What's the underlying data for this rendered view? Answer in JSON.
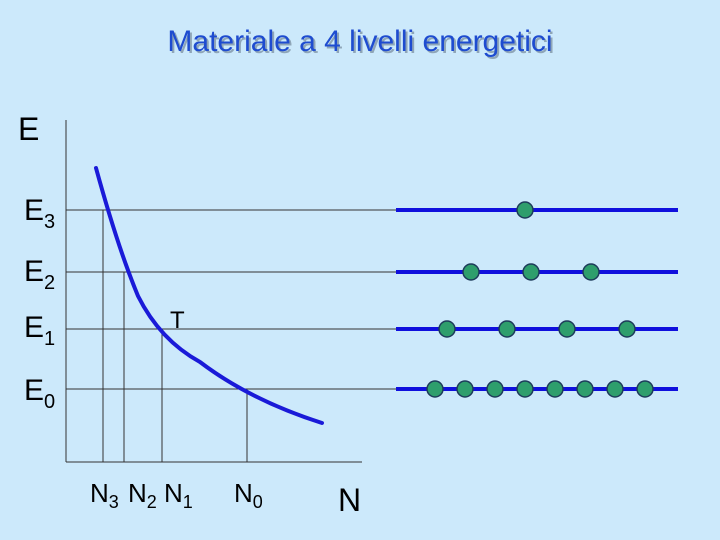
{
  "title": "Materiale a 4 livelli energetici",
  "axis": {
    "y_label": "E",
    "x_label": "N",
    "curve_label": "T"
  },
  "levels": [
    {
      "letter": "E",
      "sub": "3",
      "atoms": 1
    },
    {
      "letter": "E",
      "sub": "2",
      "atoms": 3
    },
    {
      "letter": "E",
      "sub": "1",
      "atoms": 4
    },
    {
      "letter": "E",
      "sub": "0",
      "atoms": 8
    }
  ],
  "populations": [
    {
      "letter": "N",
      "sub": "3"
    },
    {
      "letter": "N",
      "sub": "2"
    },
    {
      "letter": "N",
      "sub": "1"
    },
    {
      "letter": "N",
      "sub": "0"
    }
  ],
  "colors": {
    "background": "#cce9fb",
    "title": "#1e4cd0",
    "level_line": "#1010dd",
    "atom": "#2e9e6c"
  }
}
